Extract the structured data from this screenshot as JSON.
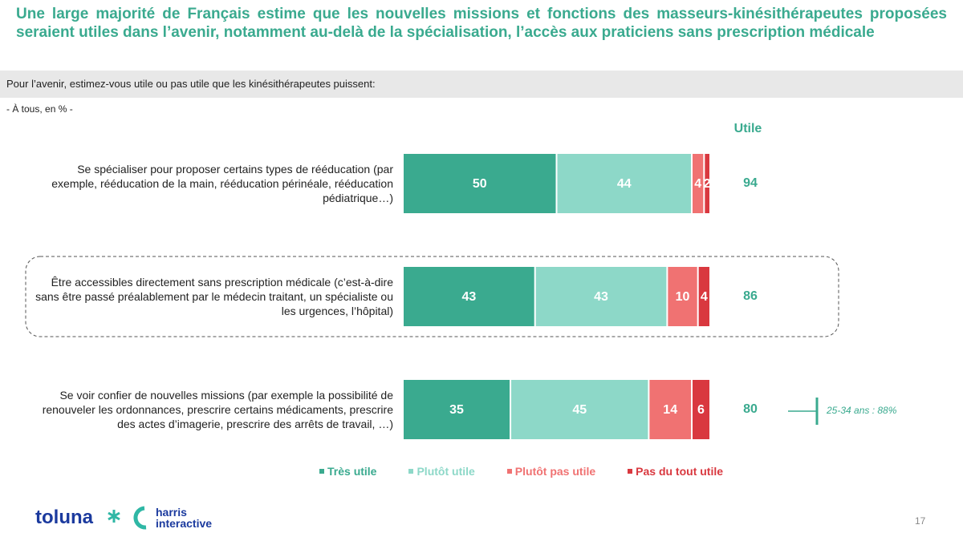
{
  "chart_data": {
    "type": "stacked_barh",
    "title": "Une large majorité de Français estime que les nouvelles missions et fonctions des masseurs-kinésithérapeutes proposées seraient utiles dans l’avenir, notamment au-delà de la spécialisation, l’accès aux praticiens sans prescription médicale",
    "subtitle": "Pour l’avenir,  estimez-vous utile ou pas utile que les kinésithérapeutes puissent:",
    "note": "- À tous, en % -",
    "categories": [
      "Se spécialiser pour proposer certains types de rééducation (par exemple, rééducation de la main, rééducation périnéale, rééducation pédiatrique…)",
      "Être accessibles directement sans prescription médicale (c’est-à-dire sans être passé préalablement par le médecin traitant, un spécialiste ou les urgences, l’hôpital)",
      "Se voir confier de nouvelles  missions (par exemple la possibilité de renouveler  les ordonnances, prescrire certains médicaments, prescrire des actes d’imagerie, prescrire des arrêts de travail, …)"
    ],
    "series": [
      {
        "name": "Très utile",
        "color": "#3aaa8f",
        "values": [
          50,
          43,
          35
        ]
      },
      {
        "name": "Plutôt utile",
        "color": "#8dd8c8",
        "values": [
          44,
          43,
          45
        ]
      },
      {
        "name": "Plutôt pas utile",
        "color": "#f07272",
        "values": [
          4,
          10,
          14
        ]
      },
      {
        "name": "Pas du tout utile",
        "color": "#d9383f",
        "values": [
          2,
          4,
          6
        ]
      }
    ],
    "xlim": [
      0,
      100
    ],
    "totals": {
      "label": "Utile",
      "values": [
        94,
        86,
        80
      ]
    },
    "annotation": "25-34 ans : 88%",
    "highlight_row": 1,
    "annotation_row": 2
  },
  "footer": {
    "brand1": "toluna",
    "brand2_line1": "harris",
    "brand2_line2": "interactive",
    "page": "17"
  }
}
